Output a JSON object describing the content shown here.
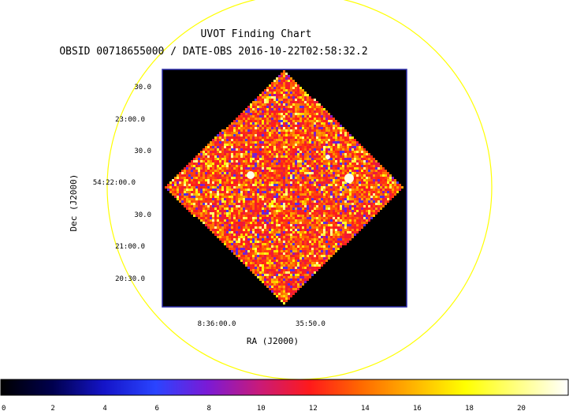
{
  "chart_data": {
    "type": "heatmap",
    "title": "UVOT Finding Chart",
    "subtitle": "OBSID 00718655000 / DATE-OBS 2016-10-22T02:58:32.2",
    "xlabel": "RA (J2000)",
    "ylabel": "Dec (J2000)",
    "x_tick_labels": [
      "8:36:00.0",
      "35:50.0"
    ],
    "y_tick_labels": [
      "30.0",
      "23:00.0",
      "30.0",
      "54:22:00.0",
      "30.0",
      "21:00.0",
      "20:30.0"
    ],
    "colorbar": {
      "ticks": [
        0,
        2,
        4,
        6,
        8,
        10,
        12,
        14,
        16,
        18,
        20
      ],
      "range": [
        0,
        21.8
      ],
      "colormap": [
        "#000000",
        "#00004d",
        "#1414c8",
        "#2a44ff",
        "#7a1ad6",
        "#c81a7a",
        "#ff1a1a",
        "#ff6a00",
        "#ffb400",
        "#ffff00",
        "#ffff80",
        "#ffffff"
      ]
    },
    "field_shape": "diamond",
    "background_color": "#000000",
    "frame_color": "#2a2aa8",
    "circle_color": "#ffff00",
    "bright_sources": 3,
    "grid": false
  }
}
